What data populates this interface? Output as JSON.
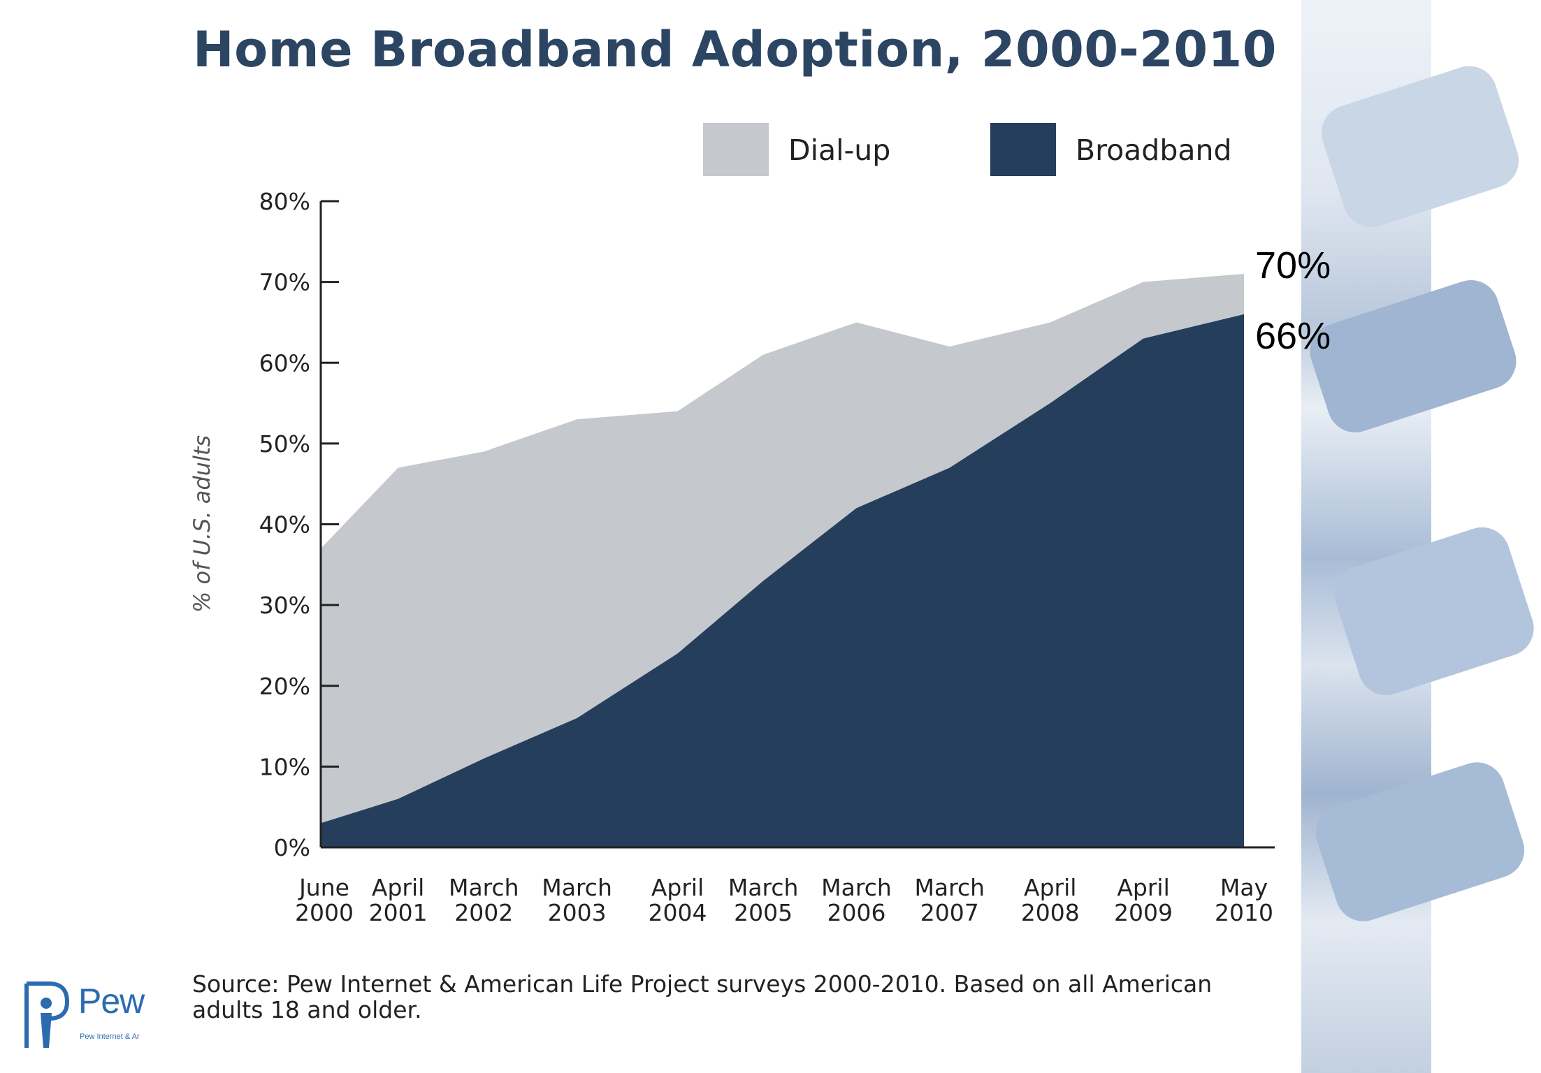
{
  "chart_data": {
    "type": "area",
    "title": "Home Broadband Adoption, 2000-2010",
    "xlabel": "",
    "ylabel": "% of U.S. adults",
    "ylim": [
      0,
      80
    ],
    "yticks": [
      "0%",
      "10%",
      "20%",
      "30%",
      "40%",
      "50%",
      "60%",
      "70%",
      "80%"
    ],
    "categories": [
      [
        "June",
        "2000"
      ],
      [
        "April",
        "2001"
      ],
      [
        "March",
        "2002"
      ],
      [
        "March",
        "2003"
      ],
      [
        "April",
        "2004"
      ],
      [
        "March",
        "2005"
      ],
      [
        "March",
        "2006"
      ],
      [
        "March",
        "2007"
      ],
      [
        "April",
        "2008"
      ],
      [
        "April",
        "2009"
      ],
      [
        "May",
        "2010"
      ]
    ],
    "x": [
      2000.42,
      2001.25,
      2002.17,
      2003.17,
      2004.25,
      2005.17,
      2006.17,
      2007.17,
      2008.25,
      2009.25,
      2010.33
    ],
    "xlim": [
      2000.42,
      2010.33
    ],
    "series": [
      {
        "name": "Broadband",
        "color": "#253e5c",
        "points": [
          [
            2000.42,
            3
          ],
          [
            2001.25,
            6
          ],
          [
            2002.17,
            11
          ],
          [
            2003.17,
            16
          ],
          [
            2004.25,
            24
          ],
          [
            2005.17,
            33
          ],
          [
            2006.17,
            42
          ],
          [
            2007.17,
            47
          ],
          [
            2008.25,
            55
          ],
          [
            2009.25,
            63
          ],
          [
            2010.33,
            66
          ]
        ]
      },
      {
        "name": "Dial-up",
        "color": "#c5c8cd",
        "points": [
          [
            2000.42,
            37
          ],
          [
            2001.25,
            47
          ],
          [
            2002.17,
            49
          ],
          [
            2003.17,
            53
          ],
          [
            2004.25,
            54
          ],
          [
            2005.17,
            61
          ],
          [
            2006.17,
            65
          ],
          [
            2007.17,
            62
          ],
          [
            2008.25,
            65
          ],
          [
            2009.25,
            70
          ],
          [
            2010.33,
            71
          ]
        ]
      }
    ],
    "legend": [
      {
        "name": "Dial-up",
        "color": "#c5c8cd"
      },
      {
        "name": "Broadband",
        "color": "#253e5c"
      }
    ],
    "legend_position": "top-right",
    "annotations": [
      "70%",
      "66%"
    ],
    "source": "Source: Pew Internet & American Life Project surveys 2000-2010. Based on all American adults 18 and older."
  },
  "logo": {
    "text": "Pew Ir",
    "sub": "Pew Internet & Ar"
  },
  "colors": {
    "title": "#2c4563",
    "broadband": "#253e5c",
    "dialup": "#c5c8cd"
  }
}
